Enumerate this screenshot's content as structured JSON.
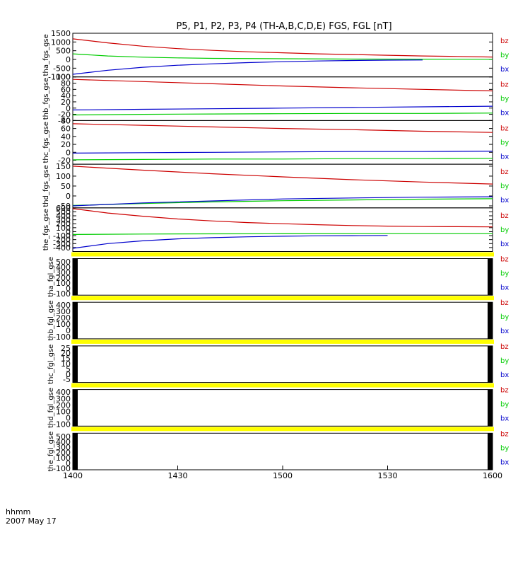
{
  "chart_data": {
    "type": "line",
    "title": "P5, P1, P2, P3, P4 (TH-A,B,C,D,E) FGS, FGL [nT]",
    "date_label": "2007 May 17",
    "time_label": "hhmm",
    "x_ticks": [
      "1400",
      "1430",
      "1500",
      "1530",
      "1600"
    ],
    "xlim": [
      0,
      120
    ],
    "legend": [
      "bz",
      "by",
      "bx"
    ],
    "colors": {
      "bz": "#cc0000",
      "by": "#00cc00",
      "bx": "#0000cc",
      "gap": "#ffff00"
    },
    "panels": [
      {
        "ylabel": "tha_fgs_gse",
        "ylim": [
          -1000,
          1500
        ],
        "yticks": [
          "1500",
          "1000",
          "500",
          "0",
          "-500",
          "-1000"
        ],
        "yvals": [
          1500,
          1000,
          500,
          0,
          -500,
          -1000
        ],
        "has_data": true,
        "series": [
          {
            "name": "bz",
            "x": [
              0,
              10,
              20,
              30,
              40,
              50,
              60,
              70,
              80,
              90,
              100,
              110,
              120
            ],
            "y": [
              1180,
              950,
              760,
              620,
              520,
              440,
              380,
              320,
              280,
              240,
              200,
              170,
              140
            ]
          },
          {
            "name": "by",
            "x": [
              0,
              10,
              20,
              30,
              40,
              60,
              80,
              100,
              120
            ],
            "y": [
              320,
              200,
              130,
              90,
              60,
              40,
              20,
              15,
              10
            ]
          },
          {
            "name": "bx",
            "x": [
              0,
              10,
              20,
              30,
              40,
              50,
              60,
              70,
              80,
              90,
              100
            ],
            "y": [
              -850,
              -620,
              -450,
              -330,
              -250,
              -180,
              -130,
              -90,
              -60,
              -40,
              -30
            ]
          }
        ]
      },
      {
        "ylabel": "thb_fgs_gse",
        "ylim": [
          -40,
          100
        ],
        "yticks": [
          "100",
          "80",
          "60",
          "40",
          "20",
          "0",
          "-20",
          "-40"
        ],
        "yvals": [
          100,
          80,
          60,
          40,
          20,
          0,
          -20,
          -40
        ],
        "has_data": true,
        "series": [
          {
            "name": "bz",
            "x": [
              0,
              20,
              40,
              60,
              80,
              100,
              120
            ],
            "y": [
              92,
              85,
              78,
              71,
              65,
              60,
              55
            ]
          },
          {
            "name": "by",
            "x": [
              0,
              20,
              40,
              60,
              80,
              100,
              120
            ],
            "y": [
              -22,
              -20,
              -19,
              -18,
              -17,
              -17,
              -16
            ]
          },
          {
            "name": "bx",
            "x": [
              0,
              20,
              40,
              60,
              80,
              100,
              120
            ],
            "y": [
              -6,
              -4,
              -2,
              0,
              2,
              4,
              6
            ]
          }
        ]
      },
      {
        "ylabel": "thc_fgs_gse",
        "ylim": [
          -30,
          80
        ],
        "yticks": [
          "80",
          "60",
          "40",
          "20",
          "0",
          "-20"
        ],
        "yvals": [
          80,
          60,
          40,
          20,
          0,
          -20
        ],
        "has_data": true,
        "series": [
          {
            "name": "bz",
            "x": [
              0,
              20,
              40,
              60,
              80,
              100,
              120
            ],
            "y": [
              72,
              68,
              64,
              60,
              57,
              53,
              50
            ]
          },
          {
            "name": "by",
            "x": [
              0,
              20,
              40,
              60,
              80,
              100,
              120
            ],
            "y": [
              -19,
              -18,
              -17,
              -17,
              -16,
              -16,
              -15
            ]
          },
          {
            "name": "bx",
            "x": [
              0,
              20,
              40,
              60,
              80,
              100,
              120
            ],
            "y": [
              -2,
              -1,
              0,
              1,
              2,
              2,
              3
            ]
          }
        ]
      },
      {
        "ylabel": "thd_fgs_gse",
        "ylim": [
          -60,
          160
        ],
        "yticks": [
          "150",
          "100",
          "50",
          "0",
          "-50"
        ],
        "yvals": [
          150,
          100,
          50,
          0,
          -50
        ],
        "has_data": true,
        "series": [
          {
            "name": "bz",
            "x": [
              0,
              20,
              40,
              60,
              80,
              100,
              120
            ],
            "y": [
              150,
              130,
              112,
              96,
              82,
              70,
              60
            ]
          },
          {
            "name": "by",
            "x": [
              0,
              20,
              40,
              60,
              80,
              100,
              120
            ],
            "y": [
              -48,
              -38,
              -30,
              -24,
              -20,
              -16,
              -14
            ]
          },
          {
            "name": "bx",
            "x": [
              0,
              20,
              40,
              60,
              80,
              100,
              120
            ],
            "y": [
              -50,
              -35,
              -25,
              -15,
              -10,
              -6,
              -4
            ]
          }
        ]
      },
      {
        "ylabel": "the_fgs_gse",
        "ylim": [
          -500,
          600
        ],
        "yticks": [
          "600",
          "500",
          "400",
          "300",
          "200",
          "100",
          "0",
          "-100",
          "-200",
          "-300",
          "-400"
        ],
        "yvals": [
          600,
          500,
          400,
          300,
          200,
          100,
          0,
          -100,
          -200,
          -300,
          -400
        ],
        "has_data": true,
        "series": [
          {
            "name": "bz",
            "x": [
              0,
              10,
              20,
              30,
              40,
              50,
              60,
              70,
              80,
              90,
              100,
              110,
              120
            ],
            "y": [
              580,
              470,
              390,
              320,
              270,
              230,
              200,
              175,
              155,
              140,
              130,
              125,
              120
            ]
          },
          {
            "name": "by",
            "x": [
              0,
              20,
              40,
              60,
              80,
              100,
              120
            ],
            "y": [
              -70,
              -60,
              -55,
              -52,
              -50,
              -50,
              -50
            ]
          },
          {
            "name": "bx",
            "x": [
              0,
              10,
              20,
              30,
              40,
              50,
              60,
              70,
              80,
              90
            ],
            "y": [
              -420,
              -300,
              -230,
              -180,
              -150,
              -130,
              -115,
              -105,
              -100,
              -95
            ]
          }
        ]
      },
      {
        "ylabel": "tha_fgl_gse",
        "ylim": [
          -130,
          560
        ],
        "yticks": [
          "500",
          "400",
          "300",
          "200",
          "100",
          "0",
          "-100"
        ],
        "yvals": [
          500,
          400,
          300,
          200,
          100,
          0,
          -100
        ],
        "has_data": false,
        "series": []
      },
      {
        "ylabel": "thb_fgl_gse",
        "ylim": [
          -130,
          440
        ],
        "yticks": [
          "400",
          "300",
          "200",
          "100",
          "0",
          "-100"
        ],
        "yvals": [
          400,
          300,
          200,
          100,
          0,
          -100
        ],
        "has_data": false,
        "series": []
      },
      {
        "ylabel": "thc_fgl_gse",
        "ylim": [
          -8,
          27
        ],
        "yticks": [
          "25",
          "20",
          "15",
          "10",
          "5",
          "0",
          "-5"
        ],
        "yvals": [
          25,
          20,
          15,
          10,
          5,
          0,
          -5
        ],
        "has_data": false,
        "series": []
      },
      {
        "ylabel": "thd_fgl_gse",
        "ylim": [
          -130,
          440
        ],
        "yticks": [
          "400",
          "300",
          "200",
          "100",
          "0",
          "-100"
        ],
        "yvals": [
          400,
          300,
          200,
          100,
          0,
          -100
        ],
        "has_data": false,
        "series": []
      },
      {
        "ylabel": "the_fgl_gse",
        "ylim": [
          -130,
          560
        ],
        "yticks": [
          "500",
          "400",
          "300",
          "200",
          "100",
          "0",
          "-100"
        ],
        "yvals": [
          500,
          400,
          300,
          200,
          100,
          0,
          -100
        ],
        "has_data": false,
        "series": []
      }
    ]
  }
}
